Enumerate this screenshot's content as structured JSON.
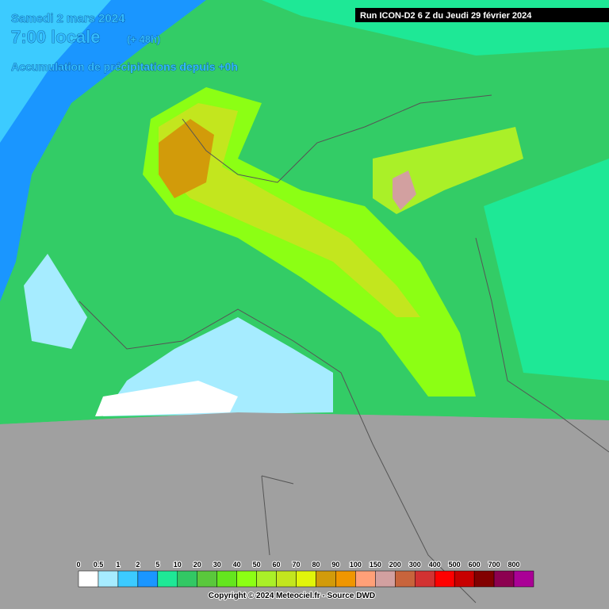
{
  "header": {
    "date": "Samedi 2 mars 2024",
    "time": "7:00 locale",
    "lead": "(+ 48h)",
    "product": "Accumulation de précipitations depuis +0h",
    "run": "Run ICON-D2 6 Z du Jeudi 29 février 2024"
  },
  "legend": {
    "labels": [
      0,
      0.5,
      1,
      2,
      5,
      10,
      20,
      30,
      40,
      50,
      60,
      70,
      80,
      90,
      100,
      150,
      200,
      300,
      400,
      500,
      600,
      700,
      800
    ],
    "colors": [
      "#ffffff",
      "#a6ecff",
      "#3ccbff",
      "#1a96ff",
      "#1ee896",
      "#32c864",
      "#5ac83c",
      "#64e61e",
      "#8cff14",
      "#aaf028",
      "#c3e61e",
      "#e1f50a",
      "#d29b0a",
      "#f09600",
      "#ffa078",
      "#d2a0a0",
      "#c8643c",
      "#d23232",
      "#ff0000",
      "#c80000",
      "#820000",
      "#8c0050",
      "#aa0096",
      "#d200d2"
    ]
  },
  "footer": {
    "copyright": "Copyright © 2024 Meteociel.fr - Source DWD"
  }
}
